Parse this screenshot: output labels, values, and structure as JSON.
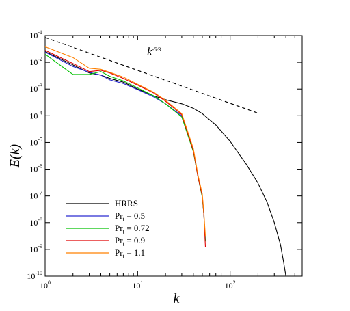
{
  "chart_data": {
    "type": "line",
    "xlabel": "k",
    "ylabel": "E(k)",
    "x_scale": "log",
    "y_scale": "log",
    "xlim": [
      1,
      600
    ],
    "ylim": [
      1e-10,
      0.1
    ],
    "grid": false,
    "legend_placement": "bottom-left",
    "x_ticks": [
      {
        "value": 1,
        "base": "10",
        "exp": "0"
      },
      {
        "value": 10,
        "base": "10",
        "exp": "1"
      },
      {
        "value": 100,
        "base": "10",
        "exp": "2"
      }
    ],
    "y_ticks": [
      {
        "value": 0.1,
        "base": "10",
        "exp": "-1"
      },
      {
        "value": 0.01,
        "base": "10",
        "exp": "-2"
      },
      {
        "value": 0.001,
        "base": "10",
        "exp": "-3"
      },
      {
        "value": 0.0001,
        "base": "10",
        "exp": "-4"
      },
      {
        "value": 1e-05,
        "base": "10",
        "exp": "-5"
      },
      {
        "value": 1e-06,
        "base": "10",
        "exp": "-6"
      },
      {
        "value": 1e-07,
        "base": "10",
        "exp": "-7"
      },
      {
        "value": 1e-08,
        "base": "10",
        "exp": "-8"
      },
      {
        "value": 1e-09,
        "base": "10",
        "exp": "-9"
      },
      {
        "value": 1e-10,
        "base": "10",
        "exp": "-10"
      }
    ],
    "reference_line": {
      "x": [
        1,
        200
      ],
      "y": [
        0.085,
        0.000125
      ],
      "style": "dashed",
      "color": "#000000"
    },
    "annotation": {
      "base": "k",
      "exp": "-5/3",
      "x": 15,
      "y": 0.018
    },
    "series": [
      {
        "name_main": "HRRS",
        "name_sub": "",
        "name_tail": "",
        "color": "#000000",
        "x": [
          1,
          2,
          3,
          4,
          5,
          7,
          10,
          15,
          20,
          30,
          40,
          50,
          70,
          100,
          150,
          200,
          250,
          300,
          350,
          380,
          400
        ],
        "y": [
          0.025,
          0.008,
          0.004,
          0.0033,
          0.0025,
          0.0018,
          0.001,
          0.00055,
          0.0004,
          0.00028,
          0.00019,
          0.00012,
          4.5e-05,
          1.1e-05,
          1.5e-06,
          3e-07,
          6e-08,
          1e-08,
          1.5e-09,
          3e-10,
          1e-10
        ]
      },
      {
        "name_main": "Pr",
        "name_sub": "t",
        "name_tail": " = 0.5",
        "color": "#2a2ad0",
        "x": [
          1,
          2,
          3,
          4,
          5,
          7,
          10,
          15,
          20,
          30,
          40,
          45,
          50,
          52,
          54
        ],
        "y": [
          0.024,
          0.007,
          0.0042,
          0.0033,
          0.0022,
          0.0016,
          0.00095,
          0.0005,
          0.00028,
          0.0001,
          5e-06,
          5e-07,
          1e-07,
          2e-08,
          2e-09
        ]
      },
      {
        "name_main": "Pr",
        "name_sub": "t",
        "name_tail": " = 0.72",
        "color": "#00c000",
        "x": [
          1,
          2,
          3,
          4,
          5,
          7,
          10,
          15,
          20,
          30,
          40,
          45,
          50,
          52,
          54
        ],
        "y": [
          0.02,
          0.0035,
          0.0035,
          0.0045,
          0.003,
          0.002,
          0.0011,
          0.00055,
          0.00028,
          9e-05,
          4.5e-06,
          5e-07,
          9e-08,
          2e-08,
          2e-09
        ]
      },
      {
        "name_main": "Pr",
        "name_sub": "t",
        "name_tail": " = 0.9",
        "color": "#e00000",
        "x": [
          1,
          2,
          3,
          4,
          5,
          7,
          10,
          15,
          20,
          30,
          40,
          45,
          50,
          52,
          54
        ],
        "y": [
          0.028,
          0.009,
          0.0045,
          0.005,
          0.004,
          0.0025,
          0.0014,
          0.0007,
          0.00035,
          0.00011,
          5e-06,
          5e-07,
          1e-07,
          2e-08,
          1.2e-09
        ]
      },
      {
        "name_main": "Pr",
        "name_sub": "t",
        "name_tail": " = 1.1",
        "color": "#ff8000",
        "x": [
          1,
          2,
          3,
          4,
          5,
          7,
          10,
          15,
          20,
          30,
          40,
          45,
          50,
          52,
          54
        ],
        "y": [
          0.038,
          0.015,
          0.006,
          0.0055,
          0.0042,
          0.0028,
          0.0015,
          0.00075,
          0.00038,
          0.00012,
          6e-06,
          6e-07,
          1.2e-07,
          2.5e-08,
          3e-09
        ]
      }
    ]
  }
}
